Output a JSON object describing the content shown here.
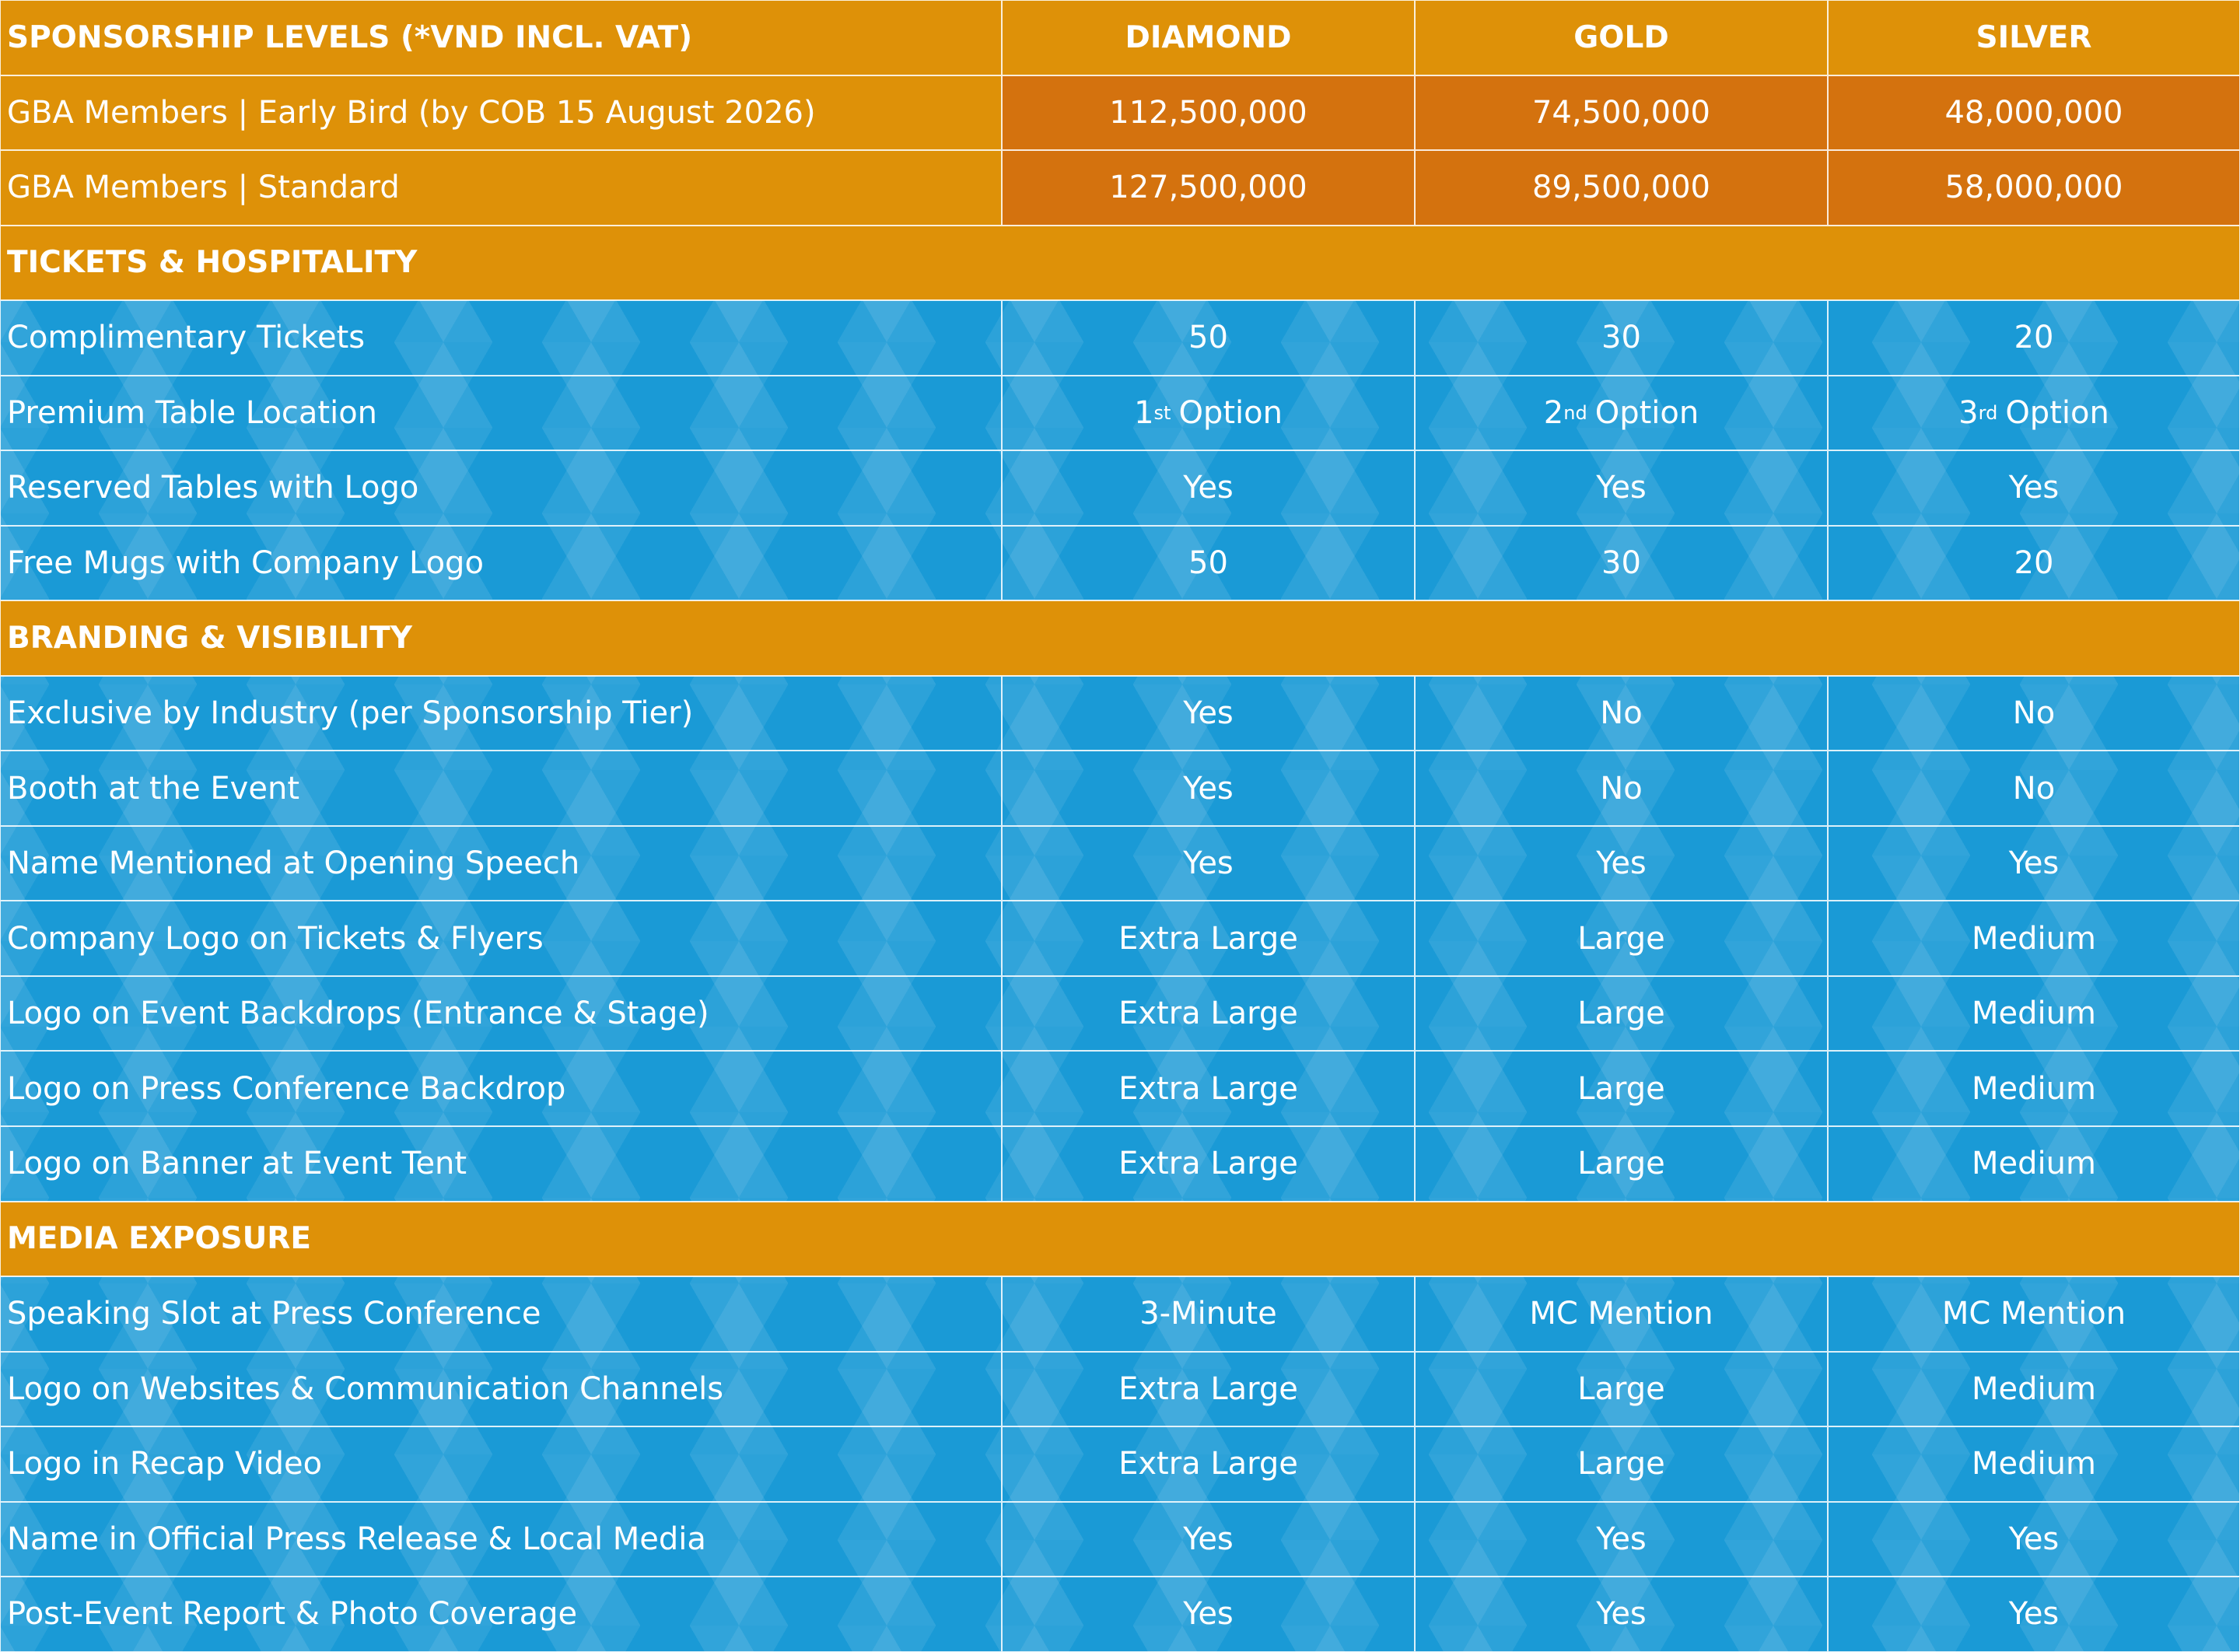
{
  "header": [
    "SPONSORSHIP LEVELS (*VND INCL. VAT)",
    "DIAMOND",
    "GOLD",
    "SILVER"
  ],
  "price_rows": [
    [
      "GBA Members | Early Bird (by COB 15 August 2026)",
      "112,500,000",
      "74,500,000",
      "48,000,000"
    ],
    [
      "GBA Members | Standard",
      "127,500,000",
      "89,500,000",
      "58,000,000"
    ]
  ],
  "sections": [
    {
      "title": "TICKETS & HOSPITALITY",
      "rows": [
        [
          "Complimentary Tickets",
          "50",
          "30",
          "20"
        ],
        [
          "Premium Table Location",
          {
            "base": "1",
            "sup": "st",
            "rest": "Option"
          },
          {
            "base": "2",
            "sup": "nd",
            "rest": "Option"
          },
          {
            "base": "3",
            "sup": "rd",
            "rest": "Option"
          }
        ],
        [
          "Reserved Tables with Logo",
          "Yes",
          "Yes",
          "Yes"
        ],
        [
          "Free Mugs with Company Logo",
          "50",
          "30",
          "20"
        ]
      ]
    },
    {
      "title": "BRANDING & VISIBILITY",
      "rows": [
        [
          "Exclusive by Industry (per Sponsorship Tier)",
          "Yes",
          "No",
          "No"
        ],
        [
          "Booth at the Event",
          "Yes",
          "No",
          "No"
        ],
        [
          "Name Mentioned at Opening Speech",
          "Yes",
          "Yes",
          "Yes"
        ],
        [
          "Company Logo on Tickets & Flyers",
          "Extra Large",
          "Large",
          "Medium"
        ],
        [
          "Logo on Event Backdrops (Entrance & Stage)",
          "Extra Large",
          "Large",
          "Medium"
        ],
        [
          "Logo on Press Conference Backdrop",
          "Extra Large",
          "Large",
          "Medium"
        ],
        [
          "Logo on Banner at Event Tent",
          "Extra Large",
          "Large",
          "Medium"
        ]
      ]
    },
    {
      "title": "MEDIA EXPOSURE",
      "rows": [
        [
          "Speaking Slot at Press Conference",
          "3-Minute",
          "MC Mention",
          "MC Mention"
        ],
        [
          "Logo on Websites & Communication Channels",
          "Extra Large",
          "Large",
          "Medium"
        ],
        [
          "Logo in Recap Video",
          "Extra Large",
          "Large",
          "Medium"
        ],
        [
          "Name in Official Press Release & Local Media",
          "Yes",
          "Yes",
          "Yes"
        ],
        [
          "Post-Event Report & Photo Coverage",
          "Yes",
          "Yes",
          "Yes"
        ]
      ]
    }
  ]
}
